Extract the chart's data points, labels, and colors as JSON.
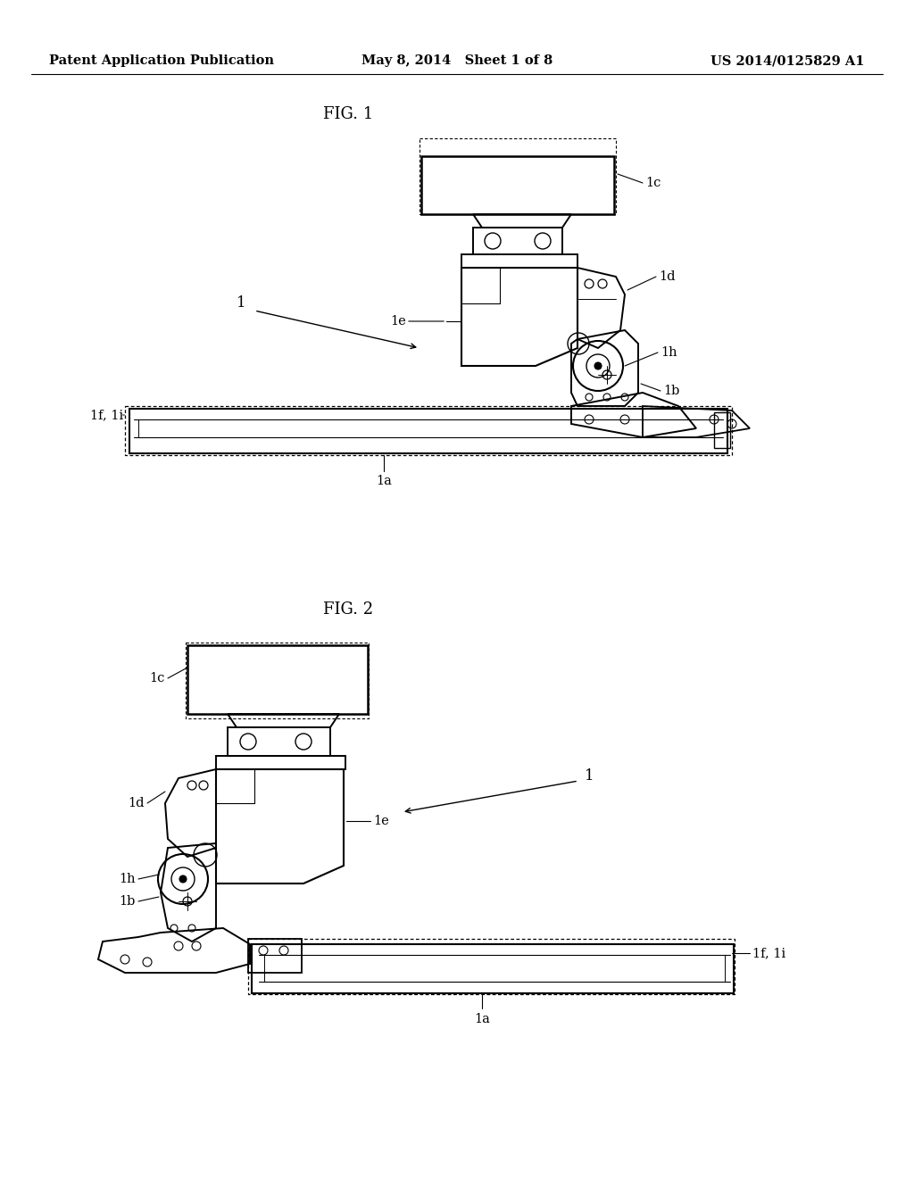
{
  "bg": "#ffffff",
  "lc": "#000000",
  "header_left": "Patent Application Publication",
  "header_mid": "May 8, 2014   Sheet 1 of 8",
  "header_right": "US 2014/0125829 A1",
  "fig1_title": "FIG. 1",
  "fig2_title": "FIG. 2",
  "header_fontsize": 10.5,
  "fig_title_fontsize": 13,
  "annotation_fontsize": 10.5
}
